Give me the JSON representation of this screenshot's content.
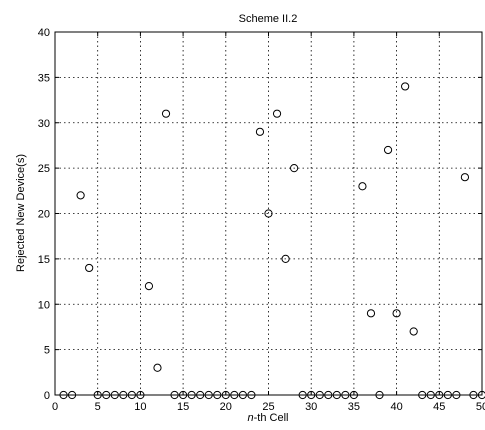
{
  "chart_data": {
    "type": "scatter",
    "title": "Scheme II.2",
    "xlabel_italic": "n",
    "xlabel_rest": "-th Cell",
    "ylabel": "Rejected New Device(s)",
    "xlim": [
      0,
      50
    ],
    "ylim": [
      0,
      40
    ],
    "xticks": [
      0,
      5,
      10,
      15,
      20,
      25,
      30,
      35,
      40,
      45,
      50
    ],
    "yticks": [
      0,
      5,
      10,
      15,
      20,
      25,
      30,
      35,
      40
    ],
    "grid": true,
    "marker": "open-circle",
    "marker_color": "#000000",
    "series": [
      {
        "points": [
          [
            1,
            0
          ],
          [
            2,
            0
          ],
          [
            3,
            22
          ],
          [
            4,
            14
          ],
          [
            5,
            0
          ],
          [
            6,
            0
          ],
          [
            7,
            0
          ],
          [
            8,
            0
          ],
          [
            9,
            0
          ],
          [
            10,
            0
          ],
          [
            11,
            12
          ],
          [
            12,
            3
          ],
          [
            13,
            31
          ],
          [
            14,
            0
          ],
          [
            15,
            0
          ],
          [
            16,
            0
          ],
          [
            17,
            0
          ],
          [
            18,
            0
          ],
          [
            19,
            0
          ],
          [
            20,
            0
          ],
          [
            21,
            0
          ],
          [
            22,
            0
          ],
          [
            23,
            0
          ],
          [
            24,
            29
          ],
          [
            25,
            20
          ],
          [
            26,
            31
          ],
          [
            27,
            15
          ],
          [
            28,
            25
          ],
          [
            29,
            0
          ],
          [
            30,
            0
          ],
          [
            31,
            0
          ],
          [
            32,
            0
          ],
          [
            33,
            0
          ],
          [
            34,
            0
          ],
          [
            35,
            0
          ],
          [
            36,
            23
          ],
          [
            37,
            9
          ],
          [
            38,
            0
          ],
          [
            39,
            27
          ],
          [
            40,
            9
          ],
          [
            41,
            34
          ],
          [
            42,
            7
          ],
          [
            43,
            0
          ],
          [
            44,
            0
          ],
          [
            45,
            0
          ],
          [
            46,
            0
          ],
          [
            47,
            0
          ],
          [
            48,
            24
          ],
          [
            49,
            0
          ],
          [
            50,
            0
          ]
        ]
      }
    ]
  }
}
